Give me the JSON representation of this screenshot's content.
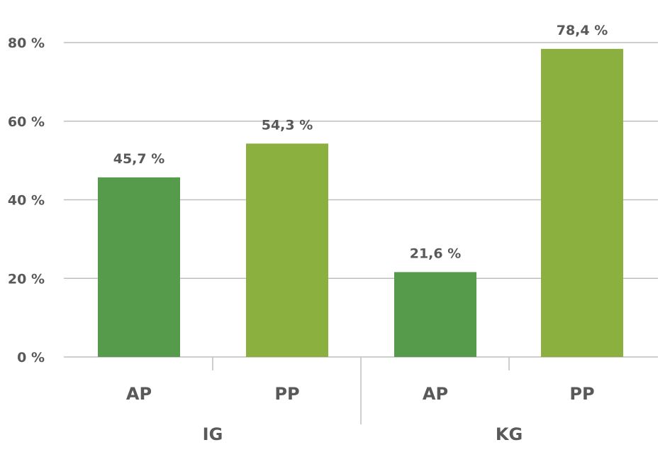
{
  "chart_data": {
    "type": "bar",
    "title": "",
    "xlabel": "",
    "ylabel": "",
    "ylim": [
      0,
      80
    ],
    "yticks": [
      "0 %",
      "20 %",
      "40 %",
      "60 %",
      "80 %"
    ],
    "ytick_values": [
      0,
      20,
      40,
      60,
      80
    ],
    "grid": true,
    "groups": [
      {
        "name": "IG",
        "bars": [
          {
            "category": "AP",
            "value": 45.7,
            "label": "45,7 %",
            "color": "#559b4b"
          },
          {
            "category": "PP",
            "value": 54.3,
            "label": "54,3 %",
            "color": "#8bb040"
          }
        ]
      },
      {
        "name": "KG",
        "bars": [
          {
            "category": "AP",
            "value": 21.6,
            "label": "21,6 %",
            "color": "#559b4b"
          },
          {
            "category": "PP",
            "value": 78.4,
            "label": "78,4 %",
            "color": "#8bb040"
          }
        ]
      }
    ],
    "colors": {
      "grid": "#bfbfbf",
      "text": "#595959"
    }
  }
}
